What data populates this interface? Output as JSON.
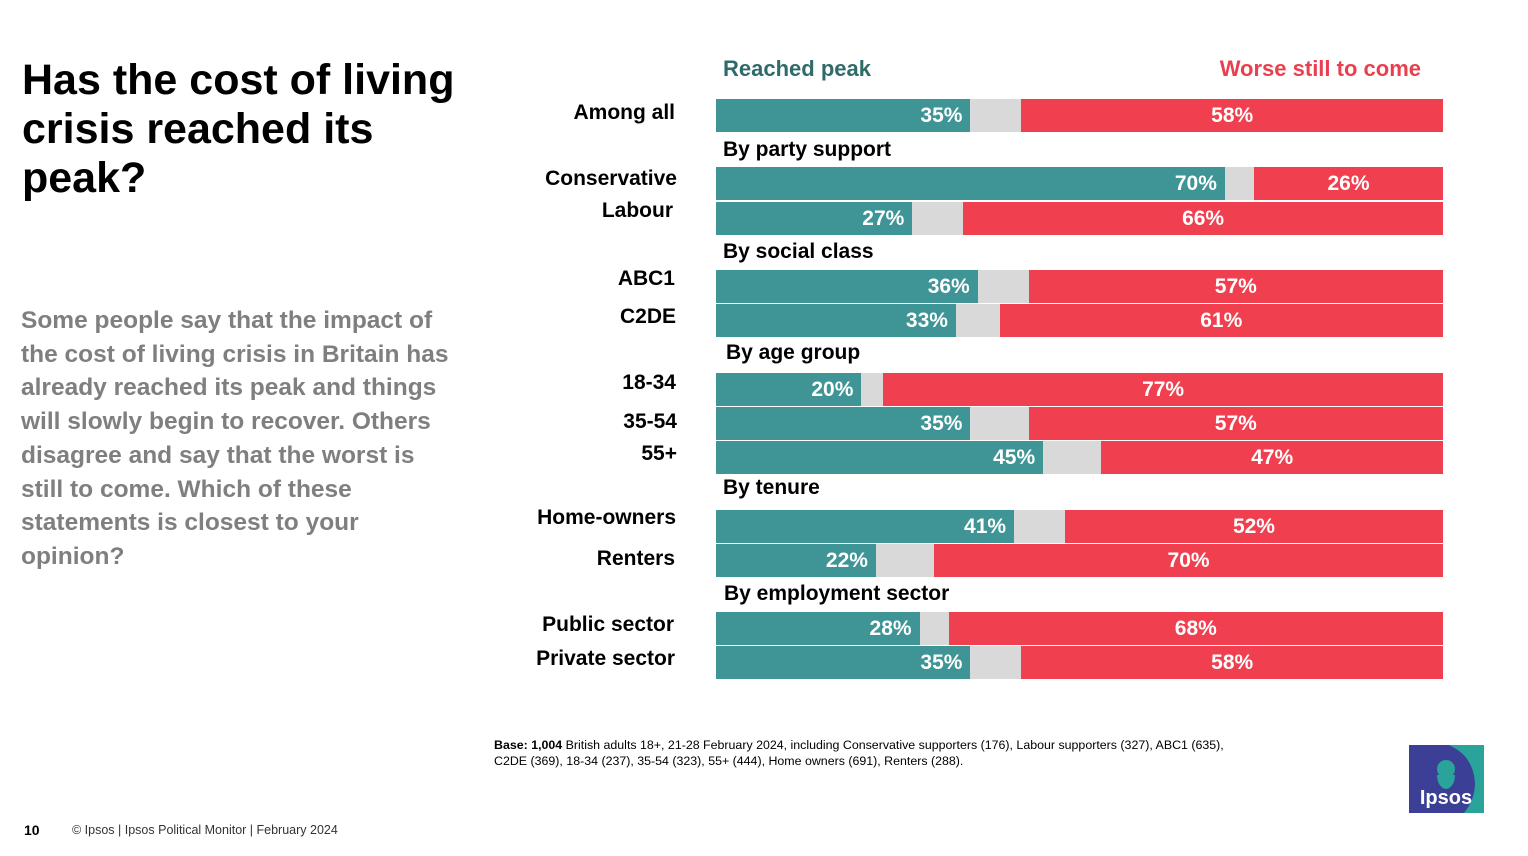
{
  "title": "Has the cost of living crisis reached its peak?",
  "question": "Some people say that the impact of the cost of living crisis in Britain has already reached its peak and things will slowly begin to recover. Others disagree and say that the worst is still to come. Which of these statements is closest to your opinion?",
  "base_note": {
    "prefix": "Base: 1,004",
    "text": " British adults 18+, 21-28 February 2024, including Conservative supporters (176), Labour supporters (327), ABC1 (635), C2DE (369), 18-34 (237), 35-54 (323), 55+ (444), Home owners (691), Renters (288)."
  },
  "footer": {
    "page": "10",
    "copyright": "© Ipsos | Ipsos Political Monitor | February 2024"
  },
  "logo": {
    "text": "Ipsos"
  },
  "colors": {
    "peak": "#3f9595",
    "neutral": "#d9d9d9",
    "worse": "#f04050",
    "peak_text": "#2e6b6a",
    "worse_text": "#e8404e"
  },
  "chart_data": {
    "type": "bar",
    "orientation": "horizontal-stacked",
    "unit": "%",
    "title": "Has the cost of living crisis reached its peak?",
    "legend": [
      "Reached peak",
      "Worse still to come"
    ],
    "sections": [
      "By party support",
      "By social class",
      "By age group",
      "By tenure",
      "By employment sector"
    ],
    "categories": [
      "Among all",
      "Conservative",
      "Labour",
      "ABC1",
      "C2DE",
      "18-34",
      "35-54",
      "55+",
      "Home-owners",
      "Renters",
      "Public sector",
      "Private sector"
    ],
    "section_of_category": [
      "",
      "By party support",
      "By party support",
      "By social class",
      "By social class",
      "By age group",
      "By age group",
      "By age group",
      "By tenure",
      "By tenure",
      "By employment sector",
      "By employment sector"
    ],
    "series": [
      {
        "name": "Reached peak",
        "values": [
          35,
          70,
          27,
          36,
          33,
          20,
          35,
          45,
          41,
          22,
          28,
          35
        ]
      },
      {
        "name": "Worse still to come",
        "values": [
          58,
          26,
          66,
          57,
          61,
          77,
          57,
          47,
          52,
          70,
          68,
          58
        ]
      }
    ],
    "xlim": [
      0,
      100
    ]
  }
}
